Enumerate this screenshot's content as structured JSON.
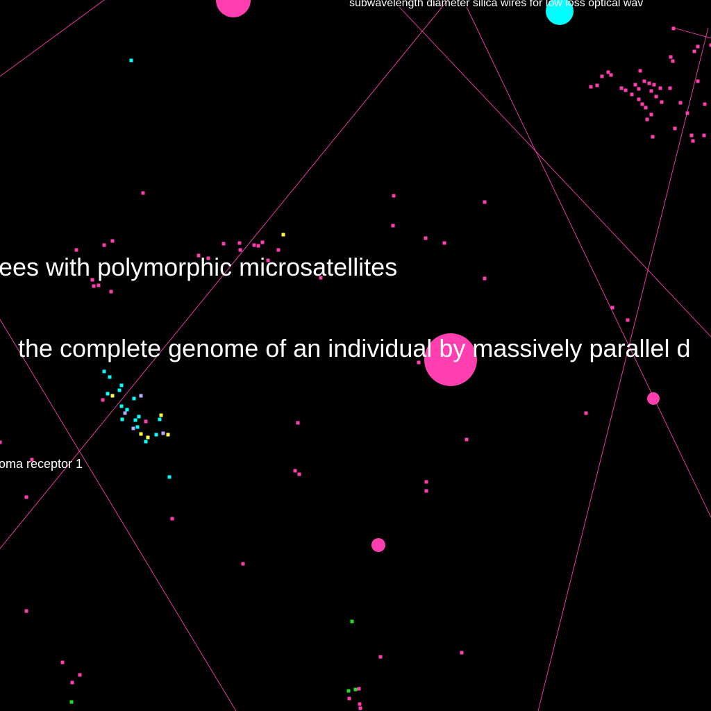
{
  "colors": {
    "background": "#000000",
    "node_magenta": "#ff3eb0",
    "node_cyan": "#00ffff",
    "node_yellow": "#ffff44",
    "node_green": "#22dd22",
    "node_lavender": "#b8a6ff",
    "edge": "#ff3eb0",
    "label": "#ffffff"
  },
  "labels": {
    "silica": "subwavelength diameter silica wires for low loss optical wav",
    "microsatellites": "ees with polymorphic microsatellites",
    "genome": "the complete genome of an individual by massively parallel d",
    "receptor": "oma receptor 1"
  }
}
